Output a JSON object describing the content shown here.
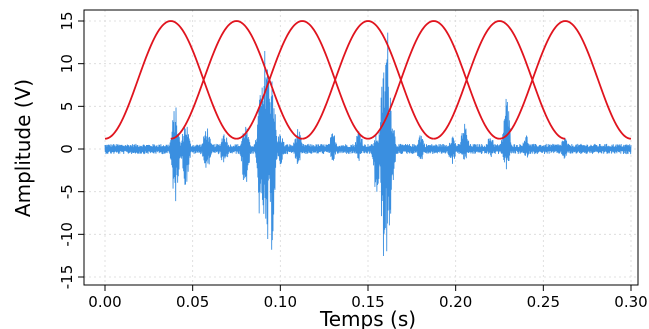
{
  "chart_data": {
    "type": "line",
    "xlabel": "Temps (s)",
    "ylabel": "Amplitude (V)",
    "xlim": [
      0.0,
      0.3
    ],
    "ylim": [
      -15,
      15
    ],
    "x_ticks": [
      "0.00",
      "0.05",
      "0.10",
      "0.15",
      "0.20",
      "0.25",
      "0.30"
    ],
    "y_ticks": [
      "-15",
      "-10",
      "-5",
      "0",
      "5",
      "10",
      "15"
    ],
    "grid": true,
    "colors": {
      "signal": "#3a8fe0",
      "envelope": "#e0141e",
      "grid": "#d9d9d9"
    },
    "series": [
      {
        "type": "noisy-signal",
        "baseline_amplitude": 0.6,
        "x_range": [
          0.0,
          0.3
        ],
        "bursts": [
          {
            "x": 0.04,
            "y_max": 5.2,
            "y_min": -6.5
          },
          {
            "x": 0.046,
            "y_max": 3.5,
            "y_min": -4.5
          },
          {
            "x": 0.058,
            "y_max": 2.8,
            "y_min": -2.8
          },
          {
            "x": 0.068,
            "y_max": 2.2,
            "y_min": -2.2
          },
          {
            "x": 0.08,
            "y_max": 3.0,
            "y_min": -5.0
          },
          {
            "x": 0.089,
            "y_max": 8.0,
            "y_min": -10.0
          },
          {
            "x": 0.092,
            "y_max": 14.0,
            "y_min": -14.0
          },
          {
            "x": 0.095,
            "y_max": 11.0,
            "y_min": -12.0
          },
          {
            "x": 0.1,
            "y_max": 2.0,
            "y_min": -2.0
          },
          {
            "x": 0.11,
            "y_max": 2.5,
            "y_min": -1.8
          },
          {
            "x": 0.13,
            "y_max": 2.0,
            "y_min": -1.5
          },
          {
            "x": 0.145,
            "y_max": 2.5,
            "y_min": -1.5
          },
          {
            "x": 0.155,
            "y_max": 1.8,
            "y_min": -6.0
          },
          {
            "x": 0.159,
            "y_max": 10.0,
            "y_min": -13.0
          },
          {
            "x": 0.161,
            "y_max": 14.5,
            "y_min": -14.0
          },
          {
            "x": 0.163,
            "y_max": 6.0,
            "y_min": -8.0
          },
          {
            "x": 0.18,
            "y_max": 2.0,
            "y_min": -1.5
          },
          {
            "x": 0.198,
            "y_max": 1.8,
            "y_min": -1.8
          },
          {
            "x": 0.205,
            "y_max": 3.2,
            "y_min": -1.5
          },
          {
            "x": 0.22,
            "y_max": 1.8,
            "y_min": -1.0
          },
          {
            "x": 0.229,
            "y_max": 6.5,
            "y_min": -2.5
          },
          {
            "x": 0.24,
            "y_max": 1.8,
            "y_min": -1.2
          },
          {
            "x": 0.262,
            "y_max": 1.5,
            "y_min": -1.2
          }
        ]
      },
      {
        "type": "envelope",
        "min": 1.2,
        "max": 15,
        "period": 0.0375,
        "starts": [
          0.0,
          0.0375,
          0.075,
          0.1125,
          0.15,
          0.1875,
          0.225
        ]
      }
    ]
  }
}
